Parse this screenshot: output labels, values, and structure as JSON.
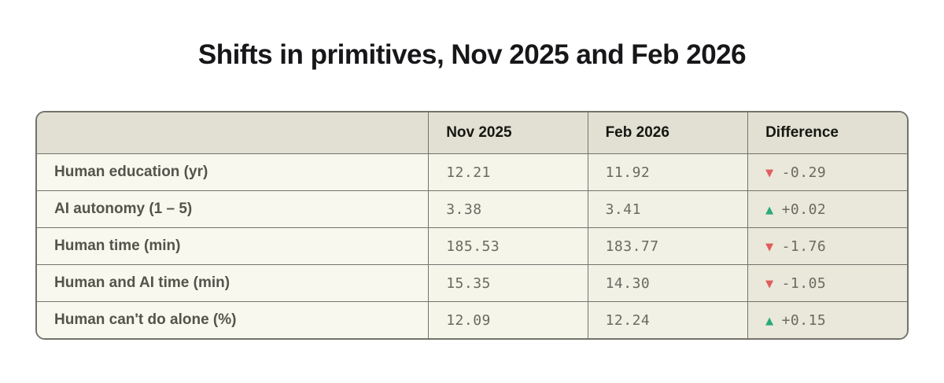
{
  "title": "Shifts in primitives, Nov 2025 and Feb 2026",
  "table": {
    "columns": {
      "metric": "",
      "nov": "Nov 2025",
      "feb": "Feb 2026",
      "diff": "Difference"
    },
    "rows": [
      {
        "label": "Human education (yr)",
        "nov": "12.21",
        "feb": "11.92",
        "diff": "-0.29",
        "arrow": "▼",
        "arrow_color": "#e05d5d",
        "icon_name": "trend-down-icon"
      },
      {
        "label": "AI autonomy (1 – 5)",
        "nov": "3.38",
        "feb": "3.41",
        "diff": "+0.02",
        "arrow": "▲",
        "arrow_color": "#2ba97a",
        "icon_name": "trend-up-icon"
      },
      {
        "label": "Human time (min)",
        "nov": "185.53",
        "feb": "183.77",
        "diff": "-1.76",
        "arrow": "▼",
        "arrow_color": "#e05d5d",
        "icon_name": "trend-down-icon"
      },
      {
        "label": "Human and AI time (min)",
        "nov": "15.35",
        "feb": "14.30",
        "diff": "-1.05",
        "arrow": "▼",
        "arrow_color": "#e05d5d",
        "icon_name": "trend-down-icon"
      },
      {
        "label": "Human can't do alone (%)",
        "nov": "12.09",
        "feb": "12.24",
        "diff": "+0.15",
        "arrow": "▲",
        "arrow_color": "#2ba97a",
        "icon_name": "trend-up-icon"
      }
    ],
    "colors": {
      "up": "#2ba97a",
      "down": "#e05d5d",
      "header_bg": "#e1e0d3",
      "diff_col_bg": "#e9e8db"
    }
  }
}
